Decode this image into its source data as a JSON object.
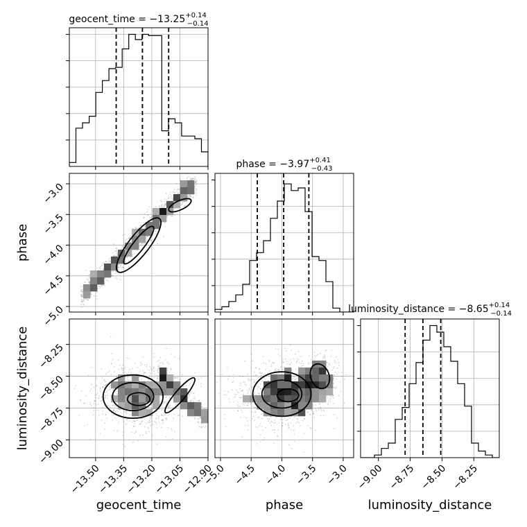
{
  "chart_data": {
    "type": "corner",
    "parameters": [
      "geocent_time",
      "phase",
      "luminosity_distance"
    ],
    "titles": {
      "geocent_time": {
        "name": "geocent_time",
        "median": "−13.25",
        "plus": "+0.14",
        "minus": "−0.14"
      },
      "phase": {
        "name": "phase",
        "median": "−3.97",
        "plus": "+0.41",
        "minus": "−0.43"
      },
      "luminosity_distance": {
        "name": "luminosity_distance",
        "median": "−8.65",
        "plus": "+0.14",
        "minus": "−0.14"
      }
    },
    "ranges": {
      "geocent_time": [
        -13.64,
        -12.9
      ],
      "phase": [
        -5.09,
        -2.83
      ],
      "luminosity_distance": [
        -9.14,
        -8.05
      ]
    },
    "ticks": {
      "geocent_time": [
        -13.5,
        -13.35,
        -13.2,
        -13.05,
        -12.9
      ],
      "phase": [
        -5.0,
        -4.5,
        -4.0,
        -3.5,
        -3.0
      ],
      "luminosity_distance": [
        -9.0,
        -8.75,
        -8.5,
        -8.25
      ]
    },
    "tick_labels": {
      "geocent_time": [
        "−13.50",
        "−13.35",
        "−13.20",
        "−13.05",
        "−12.90"
      ],
      "phase": [
        "−5.0",
        "−4.5",
        "−4.0",
        "−3.5",
        "−3.0"
      ],
      "luminosity_distance": [
        "−9.00",
        "−8.75",
        "−8.50",
        "−8.25"
      ]
    },
    "quantiles": {
      "geocent_time": [
        -13.39,
        -13.25,
        -13.11
      ],
      "phase": [
        -4.4,
        -3.97,
        -3.56
      ],
      "luminosity_distance": [
        -8.79,
        -8.65,
        -8.51
      ]
    },
    "histograms": {
      "geocent_time": [
        0.03,
        0.29,
        0.33,
        0.38,
        0.56,
        0.65,
        0.74,
        0.75,
        0.89,
        1.0,
        0.96,
        1.0,
        0.99,
        0.99,
        0.27,
        0.36,
        0.33,
        0.23,
        0.23,
        0.21,
        0.11
      ],
      "phase": [
        0.02,
        0.04,
        0.08,
        0.13,
        0.21,
        0.39,
        0.45,
        0.54,
        0.71,
        0.84,
        0.97,
        0.92,
        0.94,
        0.76,
        0.42,
        0.39,
        0.23,
        0.03,
        0.0,
        0.0
      ],
      "luminosity_distance": [
        0.0,
        0.0,
        0.02,
        0.07,
        0.11,
        0.29,
        0.38,
        0.56,
        0.72,
        0.89,
        1.0,
        0.95,
        0.84,
        0.73,
        0.56,
        0.39,
        0.11,
        0.05,
        0.02,
        0.0
      ]
    },
    "grid": true,
    "xlabels": [
      "geocent_time",
      "phase",
      "luminosity_distance"
    ],
    "ylabels": [
      "phase",
      "luminosity_distance"
    ]
  }
}
